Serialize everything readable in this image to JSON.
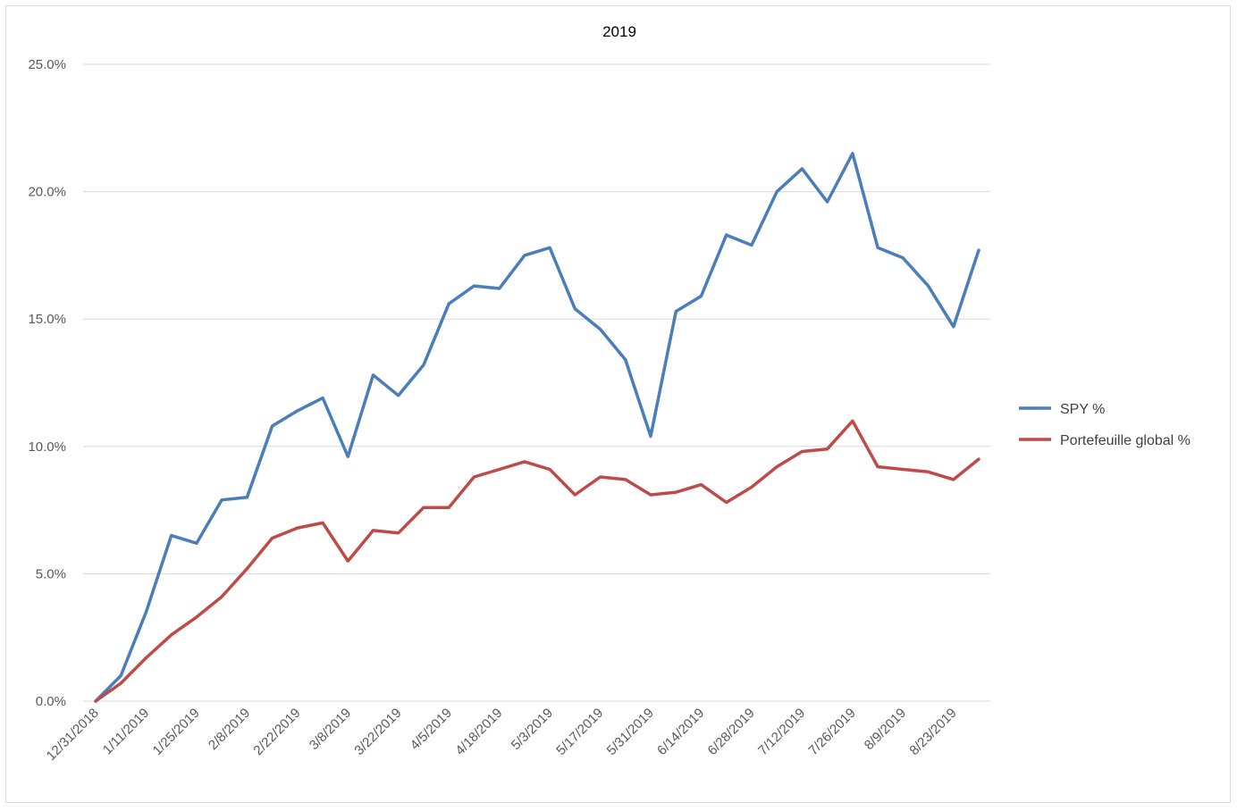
{
  "chart_data": {
    "type": "line",
    "title": "2019",
    "xlabel": "",
    "ylabel": "",
    "ylim": [
      0,
      25
    ],
    "yticks": [
      "0.0%",
      "5.0%",
      "10.0%",
      "15.0%",
      "20.0%",
      "25.0%"
    ],
    "ytick_values": [
      0,
      5,
      10,
      15,
      20,
      25
    ],
    "x_tick_labels": [
      "12/31/2018",
      "1/11/2019",
      "1/25/2019",
      "2/8/2019",
      "2/22/2019",
      "3/8/2019",
      "3/22/2019",
      "4/5/2019",
      "4/18/2019",
      "5/3/2019",
      "5/17/2019",
      "5/31/2019",
      "6/14/2019",
      "6/28/2019",
      "7/12/2019",
      "7/26/2019",
      "8/9/2019",
      "8/23/2019"
    ],
    "grid": true,
    "legend_position": "right",
    "series": [
      {
        "name": "SPY %",
        "color": "#4a7ebb",
        "values": [
          0.0,
          1.0,
          3.5,
          6.5,
          6.2,
          7.9,
          8.0,
          10.8,
          11.4,
          11.9,
          9.6,
          12.8,
          12.0,
          13.2,
          15.6,
          16.3,
          16.2,
          17.5,
          17.8,
          15.4,
          14.6,
          13.4,
          10.4,
          15.3,
          15.9,
          18.3,
          17.9,
          20.0,
          20.9,
          19.6,
          21.5,
          17.8,
          17.4,
          16.3,
          14.7,
          17.7
        ]
      },
      {
        "name": "Portefeuille global %",
        "color": "#be4b48",
        "values": [
          0.0,
          0.7,
          1.7,
          2.6,
          3.3,
          4.1,
          5.2,
          6.4,
          6.8,
          7.0,
          5.5,
          6.7,
          6.6,
          7.6,
          7.6,
          8.8,
          9.1,
          9.4,
          9.1,
          8.1,
          8.8,
          8.7,
          8.1,
          8.2,
          8.5,
          7.8,
          8.4,
          9.2,
          9.8,
          9.9,
          11.0,
          9.2,
          9.1,
          9.0,
          8.7,
          9.5
        ]
      }
    ]
  }
}
